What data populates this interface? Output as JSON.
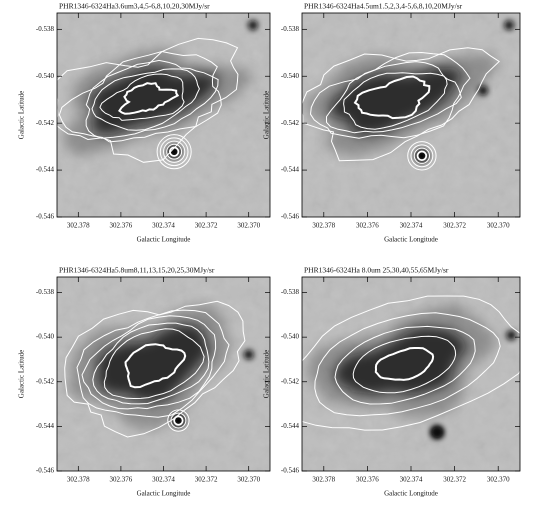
{
  "panels": [
    {
      "title": "PHR1346-6324Ha3.6um3,4,5-6,8,10,20,30MJy/sr"
    },
    {
      "title": "PHR1346-6324Ha4.5um1.5,2,3,4-5,6,8,10,20MJy/sr"
    },
    {
      "title": "PHR1346-6324Ha5.8um8,11,13,15,20,25,30MJy/sr"
    },
    {
      "title": "PHR1346-6324Ha 8.0um 25,30,40,55,65MJy/sr"
    }
  ],
  "axes": {
    "xlabel": "Galactic Longitude",
    "ylabel": "Galactic Latitude",
    "xticks": [
      "302.378",
      "302.376",
      "302.374",
      "302.372",
      "302.370"
    ],
    "yticks": [
      "-0.538",
      "-0.540",
      "-0.542",
      "-0.544",
      "-0.546"
    ]
  }
}
